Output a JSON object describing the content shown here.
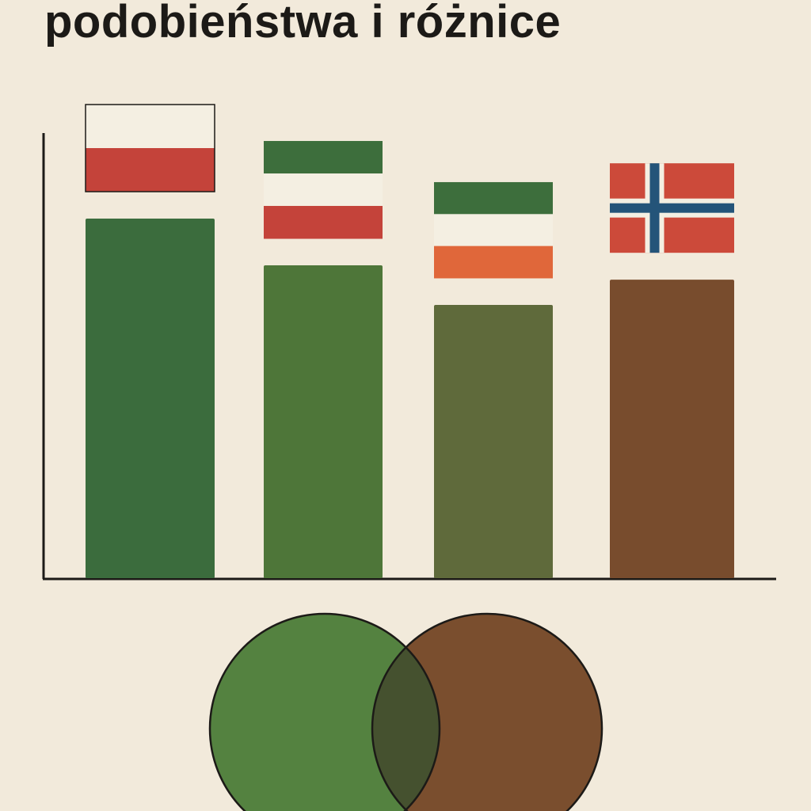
{
  "chart_data": {
    "type": "bar",
    "title": "podobieństwa i różnice",
    "categories": [
      "Poland",
      "Hungary-like (green-white-red)",
      "Green-white-orange",
      "Norway"
    ],
    "values": [
      100,
      87,
      76,
      83
    ],
    "ylim": [
      0,
      100
    ],
    "axis_ticks": false,
    "grid": false,
    "bar_colors": [
      "#3b6c3d",
      "#4e7639",
      "#5f6a3b",
      "#784c2d"
    ],
    "flags": [
      {
        "name": "poland-flag",
        "stripes": [
          "#f4efe2",
          "#c4433a"
        ]
      },
      {
        "name": "green-white-red-flag",
        "stripes": [
          "#3d6e3c",
          "#f4efe2",
          "#c4433a"
        ]
      },
      {
        "name": "green-white-orange-flag",
        "stripes": [
          "#3d6e3c",
          "#f4efe2",
          "#e0673a"
        ]
      },
      {
        "name": "norway-flag",
        "field": "#cc4a3a",
        "cross_outer": "#f4efe2",
        "cross_inner": "#245479"
      }
    ],
    "venn": {
      "left_color": "#548240",
      "right_color": "#7a4e2e",
      "overlap_color": "#45512f"
    }
  }
}
